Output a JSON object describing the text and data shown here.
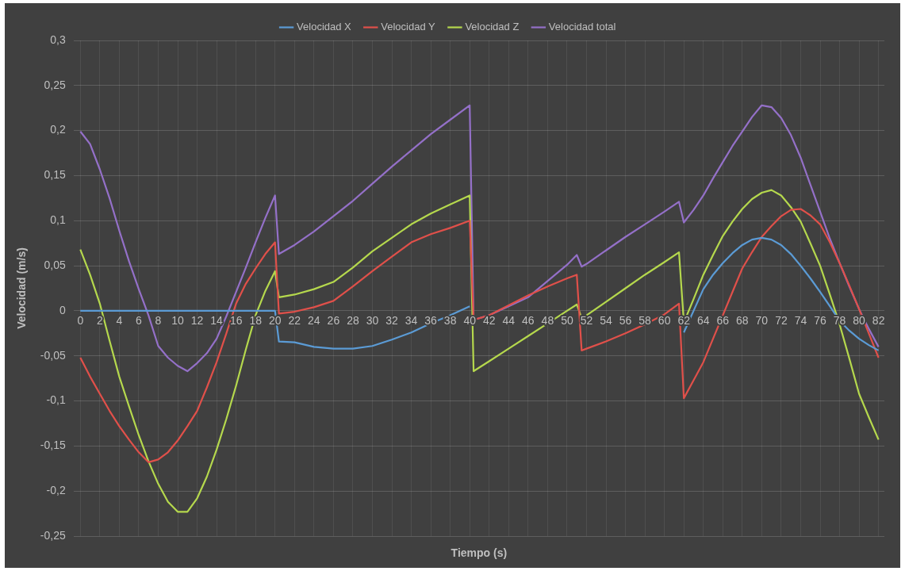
{
  "chart_data": {
    "type": "line",
    "xlabel": "Tiempo (s)",
    "ylabel": "Velocidad (m/s)",
    "x": [
      0,
      1,
      2,
      3,
      4,
      5,
      6,
      7,
      8,
      9,
      10,
      11,
      12,
      13,
      14,
      15,
      16,
      17,
      18,
      19,
      20,
      20.4,
      22,
      24,
      26,
      28,
      30,
      32,
      34,
      36,
      38,
      40,
      40.4,
      42,
      44,
      46,
      48,
      50,
      51,
      51.5,
      52,
      54,
      56,
      58,
      60,
      61.5,
      62,
      63,
      64,
      65,
      66,
      67,
      68,
      69,
      70,
      71,
      72,
      73,
      74,
      75,
      76,
      77,
      78,
      79,
      80,
      81,
      82
    ],
    "series": [
      {
        "name": "Velocidad X",
        "color": "#5b9bd5",
        "values": [
          0,
          0,
          0,
          0,
          0,
          0,
          0,
          0,
          0,
          0,
          0,
          0,
          0,
          0,
          0,
          0,
          0,
          0,
          0,
          0,
          0,
          -0.034,
          -0.035,
          -0.04,
          -0.042,
          -0.042,
          -0.039,
          -0.032,
          -0.024,
          -0.014,
          -0.005,
          0.005,
          null,
          null,
          null,
          null,
          null,
          null,
          null,
          null,
          null,
          null,
          null,
          null,
          null,
          null,
          -0.024,
          0.0,
          0.024,
          0.04,
          0.053,
          0.064,
          0.073,
          0.079,
          0.081,
          0.079,
          0.073,
          0.063,
          0.05,
          0.036,
          0.021,
          0.005,
          -0.011,
          -0.022,
          -0.031,
          -0.038,
          -0.044
        ]
      },
      {
        "name": "Velocidad Y",
        "color": "#e0504a",
        "values": [
          -0.052,
          -0.073,
          -0.092,
          -0.111,
          -0.128,
          -0.143,
          -0.157,
          -0.168,
          -0.165,
          -0.157,
          -0.144,
          -0.128,
          -0.111,
          -0.085,
          -0.057,
          -0.025,
          0.008,
          0.03,
          0.047,
          0.063,
          0.076,
          -0.003,
          -0.001,
          0.004,
          0.011,
          0.027,
          0.044,
          0.06,
          0.076,
          0.085,
          0.092,
          0.1,
          -0.01,
          -0.005,
          0.006,
          0.017,
          0.027,
          0.036,
          0.04,
          -0.044,
          -0.042,
          -0.034,
          -0.025,
          -0.015,
          -0.004,
          0.008,
          -0.097,
          -0.077,
          -0.057,
          -0.031,
          -0.005,
          0.021,
          0.047,
          0.065,
          0.082,
          0.094,
          0.105,
          0.112,
          0.113,
          0.106,
          0.096,
          0.076,
          0.053,
          0.028,
          0.002,
          -0.025,
          -0.052
        ]
      },
      {
        "name": "Velocidad Z",
        "color": "#b5d84d",
        "values": [
          0.068,
          0.04,
          0.008,
          -0.033,
          -0.073,
          -0.106,
          -0.138,
          -0.167,
          -0.192,
          -0.212,
          -0.223,
          -0.223,
          -0.208,
          -0.184,
          -0.154,
          -0.12,
          -0.083,
          -0.043,
          -0.005,
          0.022,
          0.044,
          0.015,
          0.018,
          0.024,
          0.032,
          0.048,
          0.066,
          0.081,
          0.096,
          0.108,
          0.118,
          0.128,
          -0.067,
          -0.056,
          -0.042,
          -0.028,
          -0.014,
          0.0,
          0.007,
          -0.008,
          -0.005,
          0.01,
          0.025,
          0.04,
          0.054,
          0.065,
          -0.013,
          0.013,
          0.04,
          0.062,
          0.083,
          0.099,
          0.113,
          0.124,
          0.131,
          0.134,
          0.128,
          0.115,
          0.099,
          0.075,
          0.05,
          0.018,
          -0.015,
          -0.053,
          -0.092,
          -0.118,
          -0.143
        ]
      },
      {
        "name": "Velocidad total",
        "color": "#9470c8",
        "values": [
          0.199,
          0.185,
          0.157,
          0.125,
          0.089,
          0.055,
          0.024,
          -0.005,
          -0.039,
          -0.052,
          -0.061,
          -0.067,
          -0.058,
          -0.047,
          -0.031,
          -0.006,
          0.021,
          0.048,
          0.076,
          0.103,
          0.128,
          0.063,
          0.073,
          0.088,
          0.105,
          0.122,
          0.141,
          0.16,
          0.178,
          0.196,
          0.212,
          0.228,
          -0.01,
          -0.005,
          0.005,
          0.015,
          0.033,
          0.051,
          0.062,
          0.049,
          0.052,
          0.067,
          0.082,
          0.096,
          0.11,
          0.121,
          0.098,
          0.112,
          0.128,
          0.147,
          0.165,
          0.183,
          0.199,
          0.215,
          0.228,
          0.226,
          0.214,
          0.195,
          0.17,
          0.14,
          0.11,
          0.08,
          0.053,
          0.027,
          0.002,
          -0.02,
          -0.04
        ]
      }
    ],
    "xlim": [
      -0.7,
      82.6
    ],
    "xticks": [
      0,
      2,
      4,
      6,
      8,
      10,
      12,
      14,
      16,
      18,
      20,
      22,
      24,
      26,
      28,
      30,
      32,
      34,
      36,
      38,
      40,
      42,
      44,
      46,
      48,
      50,
      52,
      54,
      56,
      58,
      60,
      62,
      64,
      66,
      68,
      70,
      72,
      74,
      76,
      78,
      80,
      82
    ],
    "ylim": [
      -0.25,
      0.3
    ],
    "yticks": [
      {
        "value": -0.25,
        "label": "-0,25"
      },
      {
        "value": -0.2,
        "label": "-0,2"
      },
      {
        "value": -0.15,
        "label": "-0,15"
      },
      {
        "value": -0.1,
        "label": "-0,1"
      },
      {
        "value": -0.05,
        "label": "-0,05"
      },
      {
        "value": 0,
        "label": "0"
      },
      {
        "value": 0.05,
        "label": "0,05"
      },
      {
        "value": 0.1,
        "label": "0,1"
      },
      {
        "value": 0.15,
        "label": "0,15"
      },
      {
        "value": 0.2,
        "label": "0,2"
      },
      {
        "value": 0.25,
        "label": "0,25"
      },
      {
        "value": 0.3,
        "label": "0,3"
      }
    ],
    "grid": true,
    "legend": "top",
    "marker": "none",
    "line_style": "solid"
  }
}
